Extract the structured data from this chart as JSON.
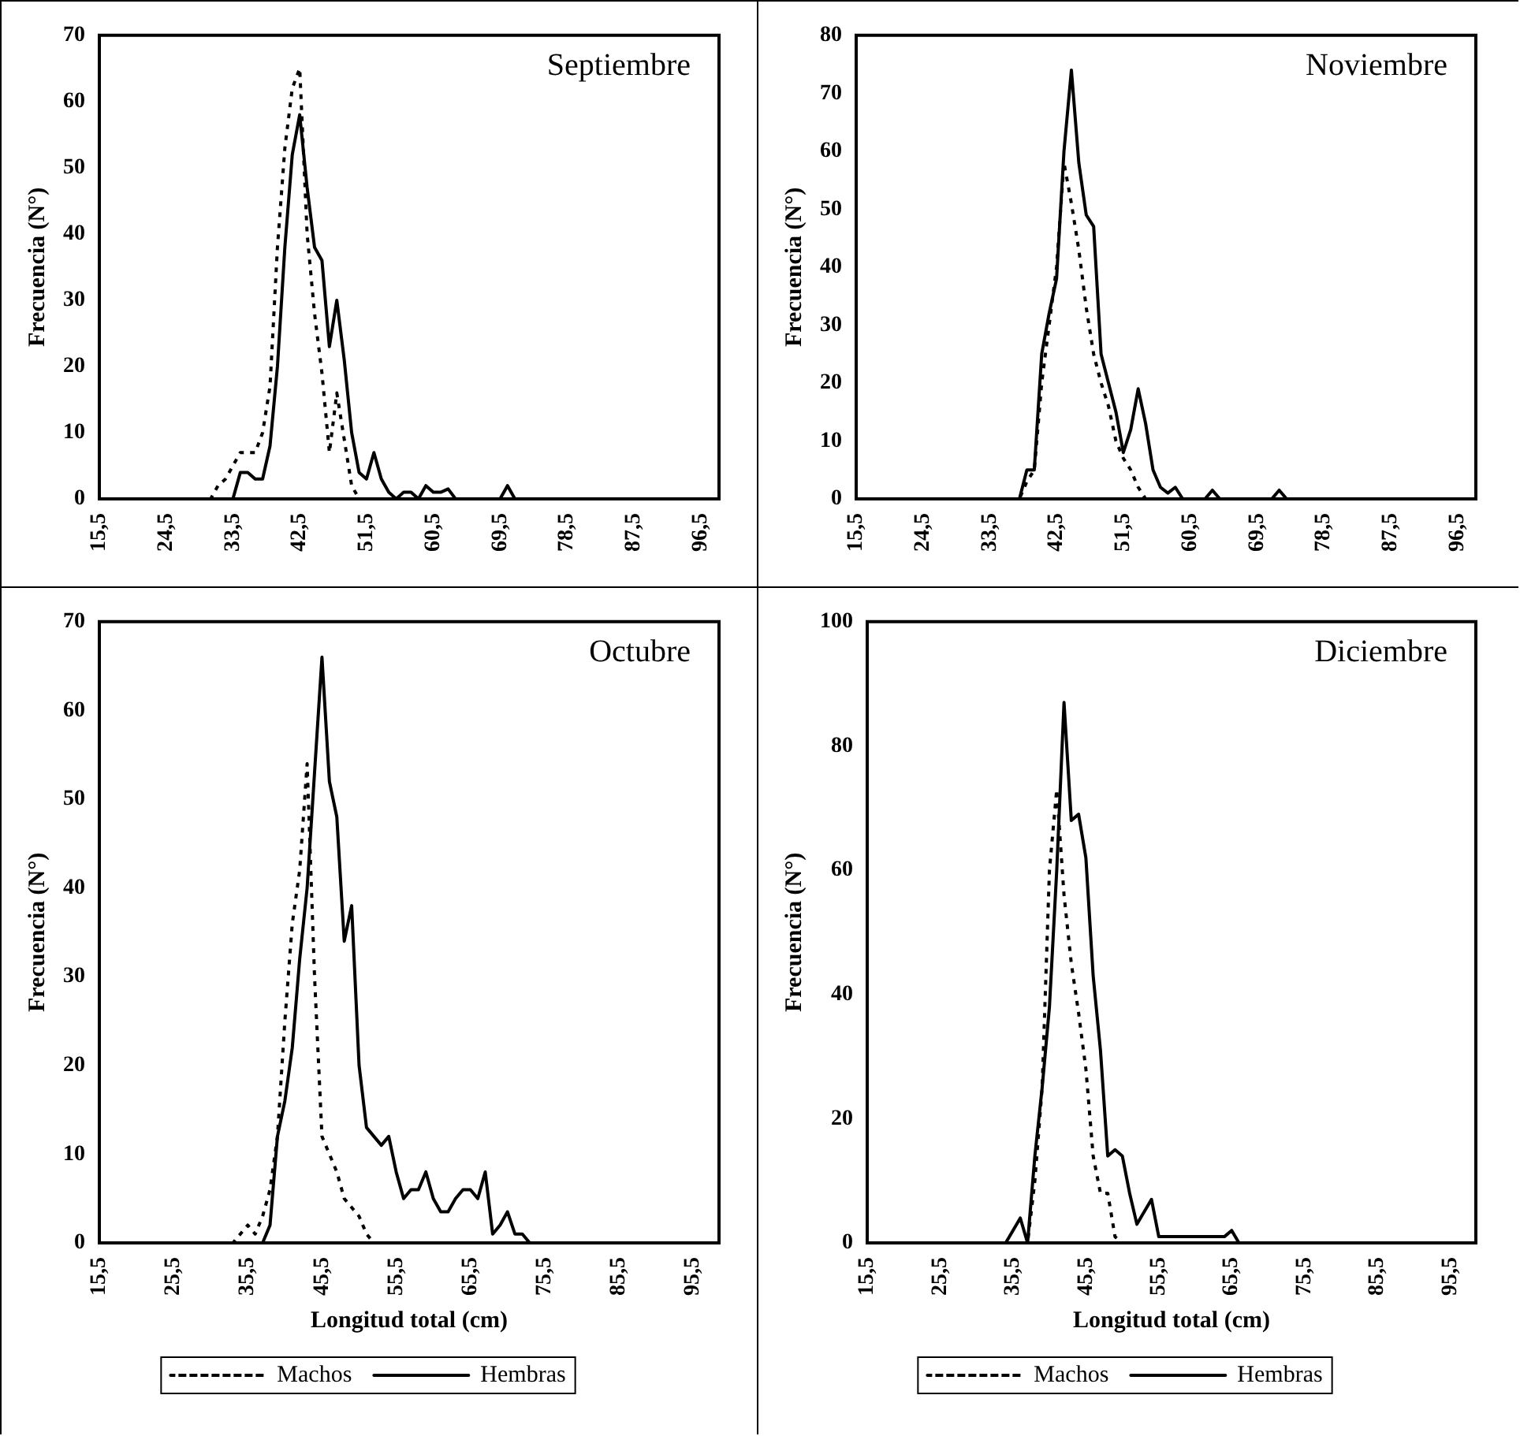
{
  "chart_data": [
    {
      "type": "line",
      "title": "Septiembre",
      "ylabel": "Frecuencia (N°)",
      "xlim": [
        15.5,
        99
      ],
      "ylim": [
        0,
        70
      ],
      "yticks": [
        0,
        10,
        20,
        30,
        40,
        50,
        60,
        70
      ],
      "xticks": [
        {
          "value": 15.5,
          "label": "15,5"
        },
        {
          "value": 24.5,
          "label": "24,5"
        },
        {
          "value": 33.5,
          "label": "33,5"
        },
        {
          "value": 42.5,
          "label": "42,5"
        },
        {
          "value": 51.5,
          "label": "51,5"
        },
        {
          "value": 60.5,
          "label": "60,5"
        },
        {
          "value": 69.5,
          "label": "69,5"
        },
        {
          "value": 78.5,
          "label": "78,5"
        },
        {
          "value": 87.5,
          "label": "87,5"
        },
        {
          "value": 96.5,
          "label": "96,5"
        }
      ],
      "grid": false,
      "legend": false,
      "marker": "none",
      "series": [
        {
          "color": "#000000",
          "line_style": "dotted",
          "x": [
            15.5,
            30.5,
            31.5,
            32.5,
            33.5,
            34.5,
            35.5,
            36.5,
            37.5,
            38.5,
            39.5,
            40.5,
            41.5,
            42.5,
            43.5,
            44.5,
            45.5,
            46.5,
            47.5,
            48.5,
            49.5,
            50.5,
            98.5
          ],
          "values": [
            0,
            0,
            2,
            3,
            5,
            7,
            7,
            7,
            10,
            17,
            38,
            53,
            62,
            65,
            40,
            28,
            19,
            7,
            16,
            9,
            2,
            0,
            0
          ]
        },
        {
          "color": "#000000",
          "line_style": "solid",
          "x": [
            15.5,
            33.5,
            34.5,
            35.5,
            36.5,
            37.5,
            38.5,
            39.5,
            40.5,
            41.5,
            42.5,
            43.5,
            44.5,
            45.5,
            46.5,
            47.5,
            48.5,
            49.5,
            50.5,
            51.5,
            52.5,
            53.5,
            54.5,
            55.5,
            56.5,
            57.5,
            58.5,
            59.5,
            60.5,
            61.5,
            62.5,
            63.5,
            69.5,
            70.5,
            71.5,
            98.5
          ],
          "values": [
            0,
            0,
            4,
            4,
            3,
            3,
            8,
            20,
            38,
            52,
            58,
            47,
            38,
            36,
            23,
            30,
            21,
            10,
            4,
            3,
            7,
            3,
            1,
            0,
            1,
            1,
            0,
            2,
            1,
            1,
            1.5,
            0,
            0,
            2,
            0,
            0
          ]
        }
      ]
    },
    {
      "type": "line",
      "title": "Noviembre",
      "ylabel": "Frecuencia (N°)",
      "xlim": [
        15.5,
        99
      ],
      "ylim": [
        0,
        80
      ],
      "yticks": [
        0,
        10,
        20,
        30,
        40,
        50,
        60,
        70,
        80
      ],
      "xticks": [
        {
          "value": 15.5,
          "label": "15,5"
        },
        {
          "value": 24.5,
          "label": "24,5"
        },
        {
          "value": 33.5,
          "label": "33,5"
        },
        {
          "value": 42.5,
          "label": "42,5"
        },
        {
          "value": 51.5,
          "label": "51,5"
        },
        {
          "value": 60.5,
          "label": "60,5"
        },
        {
          "value": 69.5,
          "label": "69,5"
        },
        {
          "value": 78.5,
          "label": "78,5"
        },
        {
          "value": 87.5,
          "label": "87,5"
        },
        {
          "value": 96.5,
          "label": "96,5"
        }
      ],
      "grid": false,
      "legend": false,
      "marker": "none",
      "series": [
        {
          "color": "#000000",
          "line_style": "dotted",
          "x": [
            15.5,
            37.5,
            38.5,
            39.5,
            40.5,
            41.5,
            42.5,
            43.5,
            44.5,
            45.5,
            46.5,
            47.5,
            48.5,
            49.5,
            50.5,
            51.5,
            52.5,
            53.5,
            54.5,
            98.5
          ],
          "values": [
            0,
            0,
            3,
            5,
            20,
            30,
            40,
            58,
            51,
            43,
            33,
            25,
            20,
            16,
            10,
            7,
            5,
            2,
            0,
            0
          ]
        },
        {
          "color": "#000000",
          "line_style": "solid",
          "x": [
            15.5,
            37.5,
            38.5,
            39.5,
            40.5,
            41.5,
            42.5,
            43.5,
            44.5,
            45.5,
            46.5,
            47.5,
            48.5,
            49.5,
            50.5,
            51.5,
            52.5,
            53.5,
            54.5,
            55.5,
            56.5,
            57.5,
            58.5,
            59.5,
            62.5,
            63.5,
            64.5,
            71.5,
            72.5,
            73.5,
            98.5
          ],
          "values": [
            0,
            0,
            5,
            5,
            25,
            32,
            38,
            60,
            74,
            58,
            49,
            47,
            25,
            20,
            15,
            8,
            12,
            19,
            13,
            5,
            2,
            1,
            2,
            0,
            0,
            1.5,
            0,
            0,
            1.5,
            0,
            0
          ]
        }
      ]
    },
    {
      "type": "line",
      "title": "Octubre",
      "ylabel": "Frecuencia (N°)",
      "xlabel": "Longitud total (cm)",
      "xlim": [
        15.5,
        99
      ],
      "ylim": [
        0,
        70
      ],
      "yticks": [
        0,
        10,
        20,
        30,
        40,
        50,
        60,
        70
      ],
      "xticks": [
        {
          "value": 15.5,
          "label": "15,5"
        },
        {
          "value": 25.5,
          "label": "25,5"
        },
        {
          "value": 35.5,
          "label": "35,5"
        },
        {
          "value": 45.5,
          "label": "45,5"
        },
        {
          "value": 55.5,
          "label": "55,5"
        },
        {
          "value": 65.5,
          "label": "65,5"
        },
        {
          "value": 75.5,
          "label": "75,5"
        },
        {
          "value": 85.5,
          "label": "85,5"
        },
        {
          "value": 95.5,
          "label": "95,5"
        }
      ],
      "grid": false,
      "legend": "bottom",
      "marker": "none",
      "series": [
        {
          "name": "Machos",
          "color": "#000000",
          "line_style": "dotted",
          "x": [
            15.5,
            33.5,
            34.5,
            35.5,
            36.5,
            37.5,
            38.5,
            39.5,
            40.5,
            41.5,
            42.5,
            43.5,
            44.5,
            45.5,
            46.5,
            47.5,
            48.5,
            49.5,
            50.5,
            51.5,
            52.5,
            98.5
          ],
          "values": [
            0,
            0,
            1,
            2,
            1,
            3,
            6,
            12,
            25,
            36,
            42,
            54,
            30,
            12,
            10,
            8,
            5,
            4,
            3,
            1,
            0,
            0
          ]
        },
        {
          "name": "Hembras",
          "color": "#000000",
          "line_style": "solid",
          "x": [
            15.5,
            37.5,
            38.5,
            39.5,
            40.5,
            41.5,
            42.5,
            43.5,
            44.5,
            45.5,
            46.5,
            47.5,
            48.5,
            49.5,
            50.5,
            51.5,
            52.5,
            53.5,
            54.5,
            55.5,
            56.5,
            57.5,
            58.5,
            59.5,
            60.5,
            61.5,
            62.5,
            63.5,
            64.5,
            65.5,
            66.5,
            67.5,
            68.5,
            69.5,
            70.5,
            71.5,
            72.5,
            73.5,
            98.5
          ],
          "values": [
            0,
            0,
            2,
            12,
            16,
            22,
            32,
            40,
            53,
            66,
            52,
            48,
            34,
            38,
            20,
            13,
            12,
            11,
            12,
            8,
            5,
            6,
            6,
            8,
            5,
            3.5,
            3.5,
            5,
            6,
            6,
            5,
            8,
            1,
            2,
            3.5,
            1,
            1,
            0,
            0
          ]
        }
      ]
    },
    {
      "type": "line",
      "title": "Diciembre",
      "ylabel": "Frecuencia (N°)",
      "xlabel": "Longitud total (cm)",
      "xlim": [
        15.5,
        99
      ],
      "ylim": [
        0,
        100
      ],
      "yticks": [
        0,
        20,
        40,
        60,
        80,
        100
      ],
      "xticks": [
        {
          "value": 15.5,
          "label": "15,5"
        },
        {
          "value": 25.5,
          "label": "25,5"
        },
        {
          "value": 35.5,
          "label": "35,5"
        },
        {
          "value": 45.5,
          "label": "45,5"
        },
        {
          "value": 55.5,
          "label": "55,5"
        },
        {
          "value": 65.5,
          "label": "65,5"
        },
        {
          "value": 75.5,
          "label": "75,5"
        },
        {
          "value": 85.5,
          "label": "85,5"
        },
        {
          "value": 95.5,
          "label": "95,5"
        }
      ],
      "grid": false,
      "legend": "bottom",
      "marker": "none",
      "series": [
        {
          "name": "Machos",
          "color": "#000000",
          "line_style": "dotted",
          "x": [
            15.5,
            37.5,
            38.5,
            39.5,
            40.5,
            41.5,
            42.5,
            43.5,
            44.5,
            45.5,
            46.5,
            47.5,
            48.5,
            49.5,
            50.5,
            98.5
          ],
          "values": [
            0,
            0,
            10,
            25,
            60,
            73,
            56,
            45,
            37,
            28,
            14,
            8,
            8,
            1,
            0,
            0
          ]
        },
        {
          "name": "Hembras",
          "color": "#000000",
          "line_style": "solid",
          "x": [
            15.5,
            34.5,
            35.5,
            36.5,
            37.5,
            38.5,
            39.5,
            40.5,
            41.5,
            42.5,
            43.5,
            44.5,
            45.5,
            46.5,
            47.5,
            48.5,
            49.5,
            50.5,
            51.5,
            52.5,
            53.5,
            54.5,
            55.5,
            64.5,
            65.5,
            66.5,
            98.5
          ],
          "values": [
            0,
            0,
            2,
            4,
            0,
            14,
            25,
            38,
            60,
            87,
            68,
            69,
            62,
            43,
            31,
            14,
            15,
            14,
            8,
            3,
            5,
            7,
            1,
            1,
            2,
            0,
            0
          ]
        }
      ]
    }
  ]
}
